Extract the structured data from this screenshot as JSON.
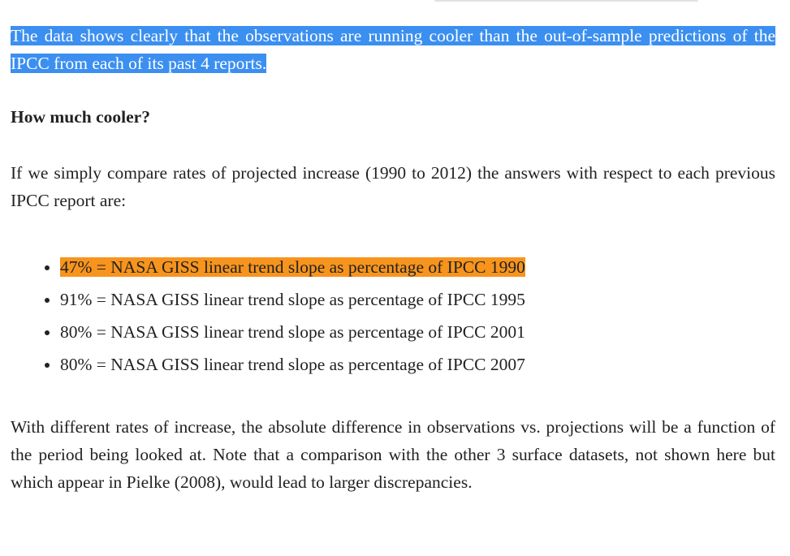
{
  "paragraphs": [
    "The data shows clearly that the observations are running cooler than the out-of-sample predictions of the IPCC from each of its past 4 reports.",
    "If we simply compare rates of projected increase (1990 to 2012) the answers with respect to each previous IPCC report are:",
    "With different rates of increase, the absolute difference in observations vs. projections will be a function of the period being looked at. Note that a comparison with the other 3 surface datasets, not shown here but which appear in Pielke (2008), would lead to larger discrepancies."
  ],
  "heading": "How much cooler?",
  "list": [
    "47% = NASA GISS linear trend slope as percentage of IPCC 1990",
    "91% = NASA GISS linear trend slope as percentage of IPCC 1995",
    "80% = NASA GISS linear trend slope as percentage of IPCC 2001",
    "80% = NASA GISS linear trend slope as percentage of IPCC 2007"
  ]
}
